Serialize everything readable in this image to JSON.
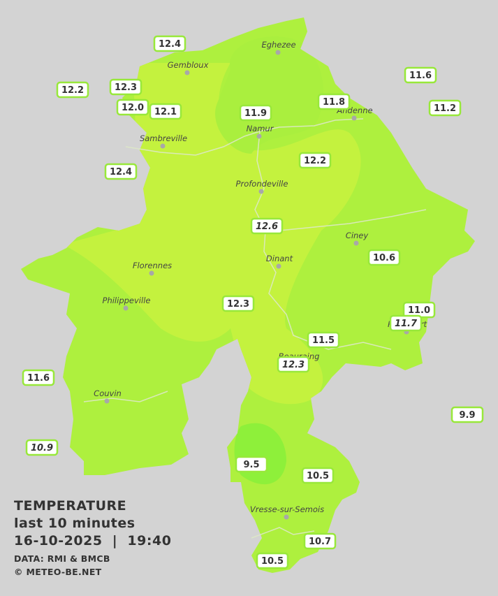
{
  "legend": {
    "title": "TEMPERATURE",
    "period": "last 10 minutes",
    "timestamp": "16-10-2025  |  19:40",
    "source": "DATA: RMI & BMCB",
    "credit": "© METEO-BE.NET"
  },
  "cities": [
    "Eghezee",
    "Gembloux",
    "Andenne",
    "Namur",
    "Sambreville",
    "Profondeville",
    "Ciney",
    "Dinant",
    "Florennes",
    "Philippeville",
    "Rochefort",
    "Beauraing",
    "Couvin",
    "Vresse-sur-Semois"
  ],
  "stations": [
    {
      "value": "12.4",
      "style": "normal"
    },
    {
      "value": "12.2",
      "style": "normal"
    },
    {
      "value": "12.3",
      "style": "normal"
    },
    {
      "value": "12.0",
      "style": "normal"
    },
    {
      "value": "12.1",
      "style": "normal"
    },
    {
      "value": "11.9",
      "style": "normal"
    },
    {
      "value": "11.8",
      "style": "normal"
    },
    {
      "value": "11.6",
      "style": "normal"
    },
    {
      "value": "11.2",
      "style": "normal"
    },
    {
      "value": "12.4",
      "style": "normal"
    },
    {
      "value": "12.2",
      "style": "normal"
    },
    {
      "value": "12.6",
      "style": "italic"
    },
    {
      "value": "10.6",
      "style": "normal"
    },
    {
      "value": "12.3",
      "style": "normal"
    },
    {
      "value": "11.0",
      "style": "normal"
    },
    {
      "value": "11.7",
      "style": "italic"
    },
    {
      "value": "11.5",
      "style": "normal"
    },
    {
      "value": "12.3",
      "style": "italic"
    },
    {
      "value": "11.6",
      "style": "normal"
    },
    {
      "value": "9.9",
      "style": "normal"
    },
    {
      "value": "10.9",
      "style": "italic"
    },
    {
      "value": "9.5",
      "style": "normal"
    },
    {
      "value": "10.5",
      "style": "normal"
    },
    {
      "value": "10.7",
      "style": "normal"
    },
    {
      "value": "10.5",
      "style": "normal"
    }
  ]
}
